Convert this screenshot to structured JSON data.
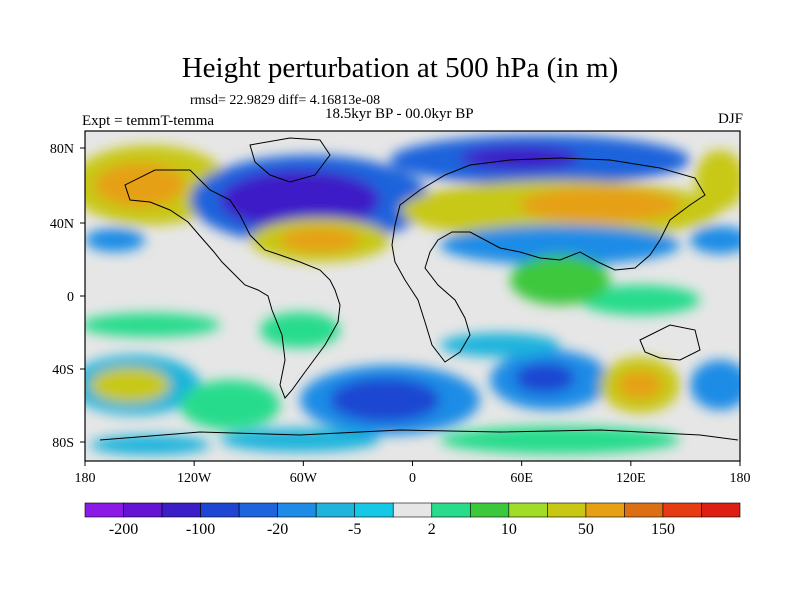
{
  "title": "Height perturbation at 500 hPa (in m)",
  "stats_line": "rmsd= 22.9829 diff= 4.16813e-08",
  "left_label": "Expt = temmT-temma",
  "period_label": "18.5kyr BP - 00.0kyr BP",
  "season_label": "DJF",
  "lat_ticks": [
    "80N",
    "40N",
    "0",
    "40S",
    "80S"
  ],
  "lon_ticks": [
    "180",
    "120W",
    "60W",
    "0",
    "60E",
    "120E",
    "180"
  ],
  "colorbar": {
    "colors": [
      "#8c1ae6",
      "#6414d2",
      "#3c1ec8",
      "#1e46d2",
      "#1e64dc",
      "#1e8ce6",
      "#1eb4dc",
      "#14c8e6",
      "#e6e6e6",
      "#28dc8c",
      "#3cc83c",
      "#a0dc28",
      "#c8c814",
      "#e6a014",
      "#dc6e14",
      "#e63c14",
      "#dc1e14"
    ],
    "labels": [
      "-200",
      "-100",
      "-20",
      "-5",
      "2",
      "10",
      "50",
      "150"
    ]
  }
}
